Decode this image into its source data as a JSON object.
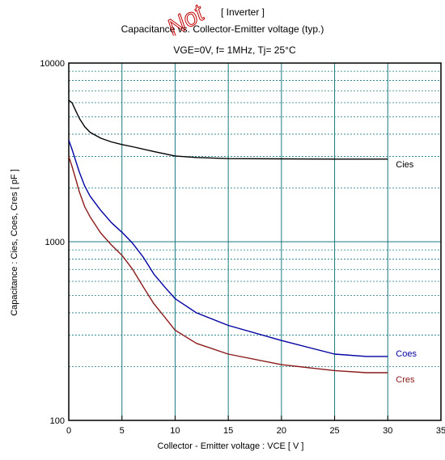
{
  "watermark": "Not",
  "chart_data": {
    "type": "line",
    "title": "[ Inverter ]",
    "subtitle": "Capacitance  vs.  Collector-Emitter voltage  (typ.)",
    "conditions": "VGE=0V,  f= 1MHz,  Tj= 25",
    "conditions_unit": "°C",
    "xlabel": "Collector - Emitter voltage  :  VCE  [ V ]",
    "ylabel": "Capacitance  :  Cies, Coes, Cres  [ pF ]",
    "xlim": [
      0,
      35
    ],
    "ylim": [
      100,
      10000
    ],
    "yscale": "log",
    "grid": true,
    "xticks": [
      "0",
      "5",
      "10",
      "15",
      "20",
      "25",
      "30",
      "35"
    ],
    "yticks": [
      "100",
      "1000",
      "10000"
    ],
    "colors": {
      "Cies": "#000000",
      "Coes": "#0000a0",
      "Cres": "#8b1a1a",
      "grid": "#1a7a80"
    },
    "series": [
      {
        "name": "Cies",
        "x": [
          0,
          0.3,
          0.6,
          1,
          1.5,
          2,
          3,
          4,
          5,
          6,
          8,
          10,
          12,
          15,
          20,
          25,
          30
        ],
        "values": [
          6200,
          6000,
          5500,
          4900,
          4400,
          4100,
          3800,
          3620,
          3500,
          3400,
          3200,
          3020,
          2960,
          2920,
          2910,
          2900,
          2900
        ]
      },
      {
        "name": "Coes",
        "x": [
          0,
          0.3,
          0.6,
          1,
          1.5,
          2,
          3,
          4,
          5,
          6,
          7,
          8,
          9,
          10,
          12,
          15,
          20,
          25,
          28,
          30
        ],
        "values": [
          3700,
          3300,
          2900,
          2450,
          2050,
          1800,
          1500,
          1280,
          1130,
          980,
          820,
          660,
          560,
          480,
          400,
          340,
          280,
          235,
          228,
          228
        ]
      },
      {
        "name": "Cres",
        "x": [
          0,
          0.3,
          0.6,
          1,
          1.5,
          2,
          3,
          4,
          5,
          6,
          7,
          8,
          9,
          10,
          12,
          15,
          20,
          25,
          28,
          30
        ],
        "values": [
          3000,
          2650,
          2300,
          1900,
          1570,
          1380,
          1120,
          960,
          840,
          700,
          560,
          450,
          380,
          320,
          270,
          235,
          205,
          190,
          185,
          185
        ]
      }
    ]
  }
}
